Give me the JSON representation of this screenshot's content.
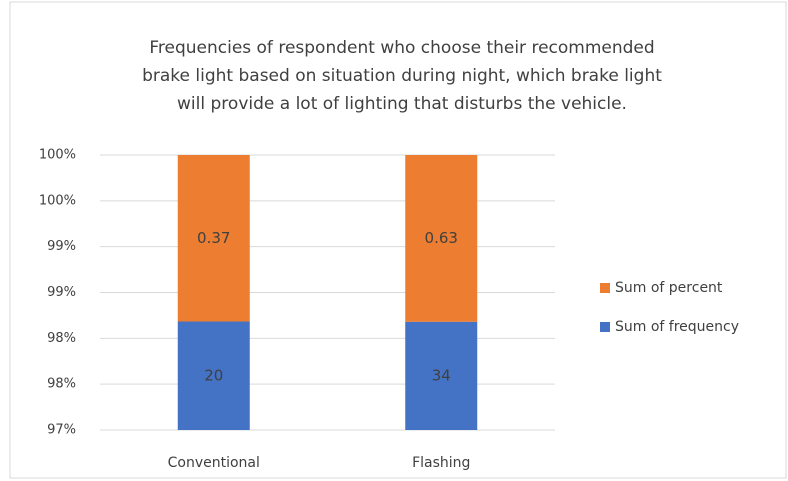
{
  "chart_data": {
    "type": "bar",
    "stacking": "percent",
    "title": [
      "Frequencies of respondent who choose their recommended",
      "brake light based on situation during night, which brake light",
      "will provide a lot of lighting that disturbs the vehicle."
    ],
    "categories": [
      "Conventional",
      "Flashing"
    ],
    "series": [
      {
        "name": "Sum of frequency",
        "color": "#4472c4",
        "values": [
          20,
          34
        ]
      },
      {
        "name": "Sum of percent",
        "color": "#ed7d31",
        "values": [
          0.37,
          0.63
        ]
      }
    ],
    "ylim": [
      97,
      100
    ],
    "yticks": [
      {
        "value": 97,
        "label": "97%"
      },
      {
        "value": 97.5,
        "label": "98%"
      },
      {
        "value": 98,
        "label": "98%"
      },
      {
        "value": 98.5,
        "label": "99%"
      },
      {
        "value": 99,
        "label": "99%"
      },
      {
        "value": 99.5,
        "label": "100%"
      },
      {
        "value": 100,
        "label": "100%"
      }
    ],
    "grid": true,
    "legend": "right"
  }
}
